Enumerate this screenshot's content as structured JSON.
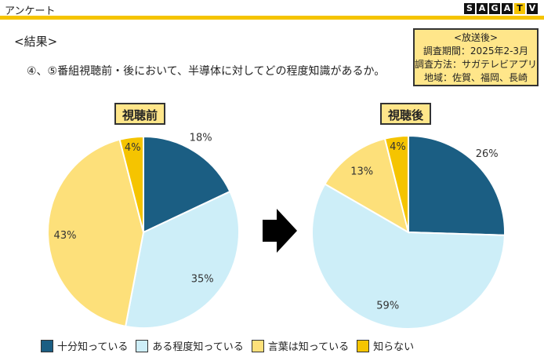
{
  "header": {
    "label": "アンケート"
  },
  "logo": {
    "letters": [
      "S",
      "A",
      "G",
      "A",
      "T",
      "V"
    ]
  },
  "section_title": "<結果>",
  "question": "④、⑤番組視聴前・後において、半導体に対してどの程度知識があるか。",
  "info_box": {
    "lines": [
      "<放送後>",
      "調査期間：2025年2-3月",
      "調査方法：サガテレビアプリ",
      "地域：佐賀、福岡、長崎"
    ]
  },
  "colors": {
    "accent": "#f5c400",
    "label_bg": "#ffe68a",
    "series": [
      "#1b5e83",
      "#cdeef8",
      "#fde07a",
      "#f5c400"
    ]
  },
  "chart_data": [
    {
      "type": "pie",
      "title": "視聴前",
      "categories": [
        "十分知っている",
        "ある程度知っている",
        "言葉は知っている",
        "知らない"
      ],
      "values": [
        18,
        35,
        43,
        4
      ],
      "labels": [
        "18%",
        "35%",
        "43%",
        "4%"
      ]
    },
    {
      "type": "pie",
      "title": "視聴後",
      "categories": [
        "十分知っている",
        "ある程度知っている",
        "言葉は知っている",
        "知らない"
      ],
      "values": [
        26,
        59,
        13,
        4
      ],
      "labels": [
        "26%",
        "59%",
        "13%",
        "4%"
      ]
    }
  ],
  "legend": [
    {
      "label": "十分知っている"
    },
    {
      "label": "ある程度知っている"
    },
    {
      "label": "言葉は知っている"
    },
    {
      "label": "知らない"
    }
  ]
}
